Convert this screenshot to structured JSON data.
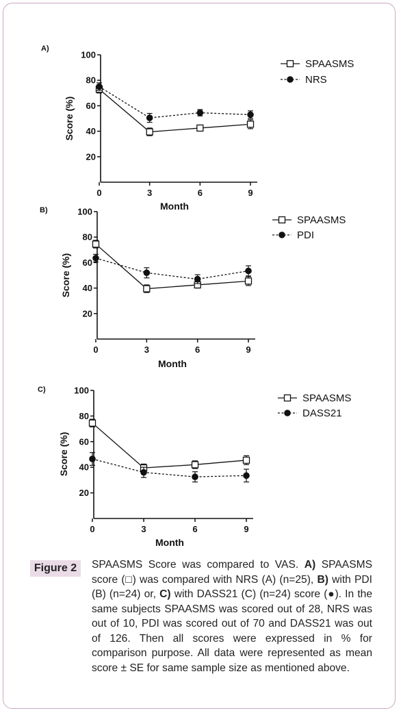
{
  "chart_data": [
    {
      "type": "line",
      "panel_label": "A)",
      "x": [
        0,
        3,
        6,
        9
      ],
      "xticks": [
        "0",
        "3",
        "6",
        "9"
      ],
      "yticks": [
        "20",
        "40",
        "60",
        "80",
        "100"
      ],
      "xlabel": "Month",
      "ylabel": "Score (%)",
      "ylim": [
        0,
        100
      ],
      "series": [
        {
          "name": "SPAASMS",
          "marker": "open-square",
          "line": "solid",
          "values": [
            73,
            39.5,
            42.5,
            45.5
          ],
          "errors": [
            3,
            3,
            2,
            3.5
          ]
        },
        {
          "name": "NRS",
          "marker": "filled-circle",
          "line": "dashed",
          "values": [
            75,
            50.5,
            54.5,
            53
          ],
          "errors": [
            3,
            3.5,
            2.5,
            3
          ]
        }
      ]
    },
    {
      "type": "line",
      "panel_label": "B)",
      "x": [
        0,
        3,
        6,
        9
      ],
      "xticks": [
        "0",
        "3",
        "6",
        "9"
      ],
      "yticks": [
        "20",
        "40",
        "60",
        "80",
        "100"
      ],
      "xlabel": "Month",
      "ylabel": "Score (%)",
      "ylim": [
        0,
        100
      ],
      "series": [
        {
          "name": "SPAASMS",
          "marker": "open-square",
          "line": "solid",
          "values": [
            74.5,
            39.5,
            42.5,
            45.5
          ],
          "errors": [
            3,
            3,
            2.5,
            3.5
          ]
        },
        {
          "name": "PDI",
          "marker": "filled-circle",
          "line": "dashed",
          "values": [
            63.5,
            52,
            47,
            53.5
          ],
          "errors": [
            3,
            4,
            3.5,
            4
          ]
        }
      ]
    },
    {
      "type": "line",
      "panel_label": "C)",
      "x": [
        0,
        3,
        6,
        9
      ],
      "xticks": [
        "0",
        "3",
        "6",
        "9"
      ],
      "yticks": [
        "20",
        "40",
        "60",
        "80",
        "100"
      ],
      "xlabel": "Month",
      "ylabel": "Score (%)",
      "ylim": [
        0,
        100
      ],
      "series": [
        {
          "name": "SPAASMS",
          "marker": "open-square",
          "line": "solid",
          "values": [
            74.5,
            39.5,
            42,
            45.5
          ],
          "errors": [
            3,
            3,
            3,
            3.5
          ]
        },
        {
          "name": "DASS21",
          "marker": "filled-circle",
          "line": "dashed",
          "values": [
            46.5,
            36,
            32.5,
            33.5
          ],
          "errors": [
            5,
            4,
            4,
            5
          ]
        }
      ]
    }
  ],
  "caption": {
    "label": "Figure 2",
    "parts": [
      {
        "t": "SPAASMS Score was compared to VAS. ",
        "b": false
      },
      {
        "t": "A)",
        "b": true
      },
      {
        "t": " SPAASMS score (□) was compared with NRS (A) (n=25), ",
        "b": false
      },
      {
        "t": "B)",
        "b": true
      },
      {
        "t": " with PDI (B) (n=24) or, ",
        "b": false
      },
      {
        "t": "C)",
        "b": true
      },
      {
        "t": " with DASS21 (C) (n=24) score (●). In the same subjects SPAASMS was scored out of 28, NRS was out of 10, PDI was scored out of 70 and DASS21 was out of 126. Then all scores were expressed in % for comparison purpose. All data were represented as mean score ± SE for same sample size as mentioned above.",
        "b": false
      }
    ]
  },
  "colors": {
    "frame": "#c9a8c2",
    "label_bg": "#eadbe6",
    "ink": "#111111"
  }
}
